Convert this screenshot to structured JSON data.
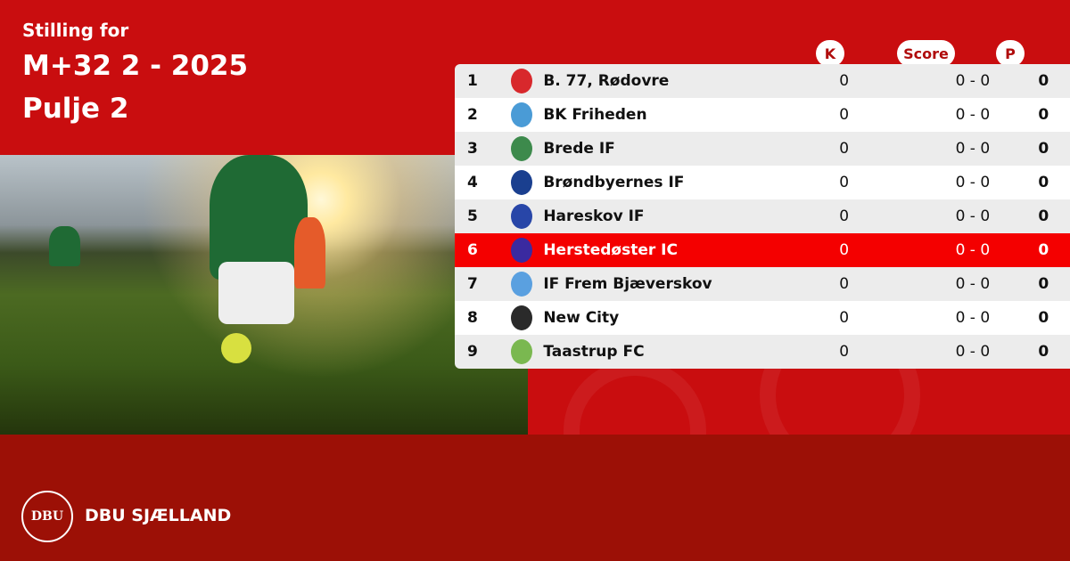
{
  "header": {
    "line1": "Stilling for",
    "line2": "M+32 2 - 2025",
    "line3": "Pulje 2"
  },
  "columns": {
    "k": "K",
    "score": "Score",
    "p": "P"
  },
  "colors": {
    "primary": "#c90d0f",
    "footer": "#9c1006",
    "highlight": "#f40000"
  },
  "highlighted_team": "Herstedøster IC",
  "rows": [
    {
      "pos": "1",
      "team": "B. 77, Rødovre",
      "k": "0",
      "score": "0 - 0",
      "p": "0",
      "logo_color": "#d8282c"
    },
    {
      "pos": "2",
      "team": "BK Friheden",
      "k": "0",
      "score": "0 - 0",
      "p": "0",
      "logo_color": "#4a9bd6"
    },
    {
      "pos": "3",
      "team": "Brede IF",
      "k": "0",
      "score": "0 - 0",
      "p": "0",
      "logo_color": "#3d8a4c"
    },
    {
      "pos": "4",
      "team": "Brøndbyernes IF",
      "k": "0",
      "score": "0 - 0",
      "p": "0",
      "logo_color": "#1a3f8f"
    },
    {
      "pos": "5",
      "team": "Hareskov IF",
      "k": "0",
      "score": "0 - 0",
      "p": "0",
      "logo_color": "#2846a8"
    },
    {
      "pos": "6",
      "team": "Herstedøster IC",
      "k": "0",
      "score": "0 - 0",
      "p": "0",
      "logo_color": "#3a2aa0"
    },
    {
      "pos": "7",
      "team": "IF Frem Bjæverskov",
      "k": "0",
      "score": "0 - 0",
      "p": "0",
      "logo_color": "#5aa0e0"
    },
    {
      "pos": "8",
      "team": "New City",
      "k": "0",
      "score": "0 - 0",
      "p": "0",
      "logo_color": "#2a2a2a"
    },
    {
      "pos": "9",
      "team": "Taastrup FC",
      "k": "0",
      "score": "0 - 0",
      "p": "0",
      "logo_color": "#7ab850"
    }
  ],
  "footer": {
    "logo_text": "DBU",
    "brand": "DBU SJÆLLAND"
  }
}
